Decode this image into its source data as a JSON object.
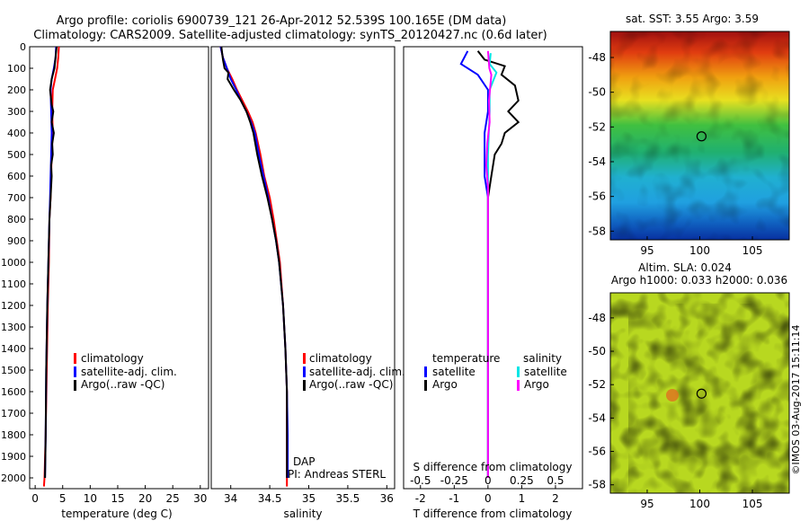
{
  "title": {
    "line1": "Argo profile: coriolis 6900739_121 26-Apr-2012 52.539S 100.165E (DM data)",
    "line2": "Climatology: CARS2009. Satellite-adjusted climatology: synTS_20120427.nc (0.6d later)"
  },
  "depth_ticks": [
    0,
    100,
    200,
    300,
    400,
    500,
    600,
    700,
    800,
    900,
    1000,
    1100,
    1200,
    1300,
    1400,
    1500,
    1600,
    1700,
    1800,
    1900,
    2000
  ],
  "colors": {
    "clim": "#ff0000",
    "sat": "#0000ff",
    "argo": "#000000",
    "sal_sat": "#00e5e5",
    "sal_argo": "#ff00ff"
  },
  "chart_data": [
    {
      "type": "line",
      "name": "temperature",
      "xlabel": "temperature (deg C)",
      "xlim": [
        -1,
        31.5
      ],
      "xticks": [
        0,
        5,
        10,
        15,
        20,
        25,
        30
      ],
      "ylim": [
        0,
        2050
      ],
      "series": [
        {
          "name": "climatology",
          "color": "#ff0000",
          "points": [
            [
              4.3,
              0
            ],
            [
              4.2,
              50
            ],
            [
              4.0,
              100
            ],
            [
              3.6,
              150
            ],
            [
              3.2,
              200
            ],
            [
              3.1,
              300
            ],
            [
              3.2,
              400
            ],
            [
              3.0,
              500
            ],
            [
              2.9,
              600
            ],
            [
              2.8,
              700
            ],
            [
              2.6,
              800
            ],
            [
              2.5,
              1000
            ],
            [
              2.3,
              1200
            ],
            [
              2.1,
              1500
            ],
            [
              1.9,
              1800
            ],
            [
              1.7,
              2000
            ],
            [
              1.6,
              2040
            ]
          ]
        },
        {
          "name": "satellite-adj. clim.",
          "color": "#0000ff",
          "points": [
            [
              3.8,
              0
            ],
            [
              3.7,
              50
            ],
            [
              3.4,
              100
            ],
            [
              3.0,
              150
            ],
            [
              2.8,
              200
            ],
            [
              2.9,
              300
            ],
            [
              3.0,
              400
            ],
            [
              2.9,
              500
            ],
            [
              2.8,
              600
            ],
            [
              2.7,
              700
            ],
            [
              2.6,
              800
            ],
            [
              2.4,
              1000
            ],
            [
              2.2,
              1200
            ],
            [
              2.0,
              1500
            ],
            [
              1.9,
              1800
            ],
            [
              1.8,
              2000
            ]
          ]
        },
        {
          "name": "Argo(..raw -QC)",
          "color": "#000000",
          "points": [
            [
              3.9,
              0
            ],
            [
              3.7,
              50
            ],
            [
              3.5,
              100
            ],
            [
              3.0,
              150
            ],
            [
              2.7,
              200
            ],
            [
              3.0,
              270
            ],
            [
              3.3,
              300
            ],
            [
              3.0,
              350
            ],
            [
              3.4,
              400
            ],
            [
              3.1,
              450
            ],
            [
              3.2,
              500
            ],
            [
              2.9,
              550
            ],
            [
              3.0,
              600
            ],
            [
              2.8,
              700
            ],
            [
              2.6,
              800
            ],
            [
              2.4,
              1000
            ],
            [
              2.2,
              1200
            ],
            [
              2.0,
              1500
            ],
            [
              1.9,
              1800
            ],
            [
              1.8,
              2000
            ]
          ]
        }
      ],
      "legend": [
        "climatology",
        "satellite-adj. clim.",
        "Argo(..raw -QC)"
      ]
    },
    {
      "type": "line",
      "name": "salinity",
      "xlabel": "salinity",
      "xlim": [
        33.75,
        36.1
      ],
      "xticks": [
        34,
        34.5,
        35,
        35.5,
        36
      ],
      "ylim": [
        0,
        2050
      ],
      "series": [
        {
          "name": "climatology",
          "color": "#ff0000",
          "points": [
            [
              33.87,
              0
            ],
            [
              33.9,
              50
            ],
            [
              33.95,
              100
            ],
            [
              34.02,
              150
            ],
            [
              34.08,
              200
            ],
            [
              34.15,
              250
            ],
            [
              34.22,
              300
            ],
            [
              34.28,
              350
            ],
            [
              34.32,
              400
            ],
            [
              34.38,
              500
            ],
            [
              34.43,
              600
            ],
            [
              34.5,
              700
            ],
            [
              34.55,
              800
            ],
            [
              34.59,
              900
            ],
            [
              34.63,
              1000
            ],
            [
              34.67,
              1200
            ],
            [
              34.7,
              1400
            ],
            [
              34.72,
              1600
            ],
            [
              34.72,
              1800
            ],
            [
              34.72,
              2000
            ],
            [
              34.72,
              2040
            ]
          ]
        },
        {
          "name": "satellite-adj. clim.",
          "color": "#0000ff",
          "points": [
            [
              33.87,
              0
            ],
            [
              33.9,
              50
            ],
            [
              33.95,
              100
            ],
            [
              34.0,
              150
            ],
            [
              34.07,
              200
            ],
            [
              34.13,
              250
            ],
            [
              34.2,
              300
            ],
            [
              34.26,
              350
            ],
            [
              34.31,
              400
            ],
            [
              34.36,
              500
            ],
            [
              34.42,
              600
            ],
            [
              34.48,
              700
            ],
            [
              34.53,
              800
            ],
            [
              34.58,
              900
            ],
            [
              34.62,
              1000
            ],
            [
              34.67,
              1200
            ],
            [
              34.7,
              1400
            ],
            [
              34.72,
              1600
            ],
            [
              34.73,
              1800
            ],
            [
              34.73,
              2000
            ]
          ]
        },
        {
          "name": "Argo(..raw -QC)",
          "color": "#000000",
          "points": [
            [
              33.88,
              0
            ],
            [
              33.9,
              60
            ],
            [
              33.92,
              100
            ],
            [
              33.97,
              120
            ],
            [
              33.96,
              150
            ],
            [
              34.04,
              200
            ],
            [
              34.13,
              250
            ],
            [
              34.2,
              300
            ],
            [
              34.25,
              350
            ],
            [
              34.29,
              400
            ],
            [
              34.34,
              500
            ],
            [
              34.4,
              600
            ],
            [
              34.47,
              700
            ],
            [
              34.53,
              800
            ],
            [
              34.58,
              900
            ],
            [
              34.62,
              1000
            ],
            [
              34.67,
              1200
            ],
            [
              34.7,
              1400
            ],
            [
              34.72,
              1600
            ],
            [
              34.72,
              1800
            ],
            [
              34.72,
              2000
            ]
          ]
        }
      ],
      "legend": [
        "climatology",
        "satellite-adj. clim.",
        "Argo(..raw -QC)"
      ],
      "annotation": [
        "DAP",
        "PI: Andreas STERL"
      ]
    },
    {
      "type": "line",
      "name": "difference",
      "xlabel": "T difference from climatology",
      "xlabel2": "S difference from climatology",
      "xlim": [
        -2.5,
        2.8
      ],
      "xticks": [
        -2,
        -1,
        0,
        1,
        2
      ],
      "xticks_s": [
        "-0.5",
        "-0.25",
        "0",
        "0.25",
        "0.5"
      ],
      "xticks_s_values": [
        -0.5,
        -0.25,
        0,
        0.25,
        0.5
      ],
      "ylim": [
        0,
        2050
      ],
      "series": [
        {
          "name": "temperature satellite",
          "color": "#0000ff",
          "points": [
            [
              -0.6,
              20
            ],
            [
              -0.8,
              80
            ],
            [
              -0.3,
              130
            ],
            [
              0.0,
              200
            ],
            [
              0.0,
              300
            ],
            [
              -0.1,
              400
            ],
            [
              -0.1,
              500
            ],
            [
              -0.1,
              600
            ],
            [
              0.0,
              700
            ],
            [
              0.0,
              800
            ],
            [
              0.0,
              1000
            ],
            [
              0.0,
              1500
            ],
            [
              0.0,
              2000
            ]
          ]
        },
        {
          "name": "temperature Argo",
          "color": "#000000",
          "points": [
            [
              -0.3,
              20
            ],
            [
              -0.1,
              60
            ],
            [
              0.5,
              90
            ],
            [
              0.4,
              130
            ],
            [
              0.8,
              180
            ],
            [
              0.9,
              250
            ],
            [
              0.6,
              300
            ],
            [
              0.9,
              350
            ],
            [
              0.5,
              400
            ],
            [
              0.4,
              450
            ],
            [
              0.2,
              500
            ],
            [
              0.1,
              600
            ],
            [
              0.0,
              700
            ],
            [
              0.0,
              1000
            ],
            [
              0.0,
              1500
            ],
            [
              0.0,
              2000
            ]
          ]
        },
        {
          "name": "salinity satellite",
          "color": "#00e5e5",
          "points": [
            [
              0.08,
              30
            ],
            [
              0.05,
              80
            ],
            [
              0.25,
              120
            ],
            [
              0.05,
              200
            ],
            [
              0.05,
              300
            ],
            [
              0.0,
              500
            ],
            [
              0.0,
              700
            ],
            [
              0.0,
              1000
            ],
            [
              0.0,
              2000
            ]
          ]
        },
        {
          "name": "salinity Argo",
          "color": "#ff00ff",
          "points": [
            [
              0.0,
              20
            ],
            [
              0.04,
              100
            ],
            [
              0.1,
              130
            ],
            [
              0.03,
              250
            ],
            [
              0.05,
              350
            ],
            [
              -0.02,
              450
            ],
            [
              -0.05,
              550
            ],
            [
              0.0,
              650
            ],
            [
              0.0,
              1000
            ],
            [
              0.0,
              2000
            ]
          ]
        }
      ],
      "legend_headers": [
        "temperature",
        "salinity"
      ],
      "legend_items": [
        "satellite",
        "Argo",
        "satellite",
        "Argo"
      ]
    }
  ],
  "maps": {
    "sst": {
      "title": "sat. SST: 3.55 Argo: 3.59",
      "yticks": [
        "-48",
        "-50",
        "-52",
        "-54",
        "-56",
        "-58"
      ],
      "ytick_values": [
        -48,
        -50,
        -52,
        -54,
        -56,
        -58
      ],
      "xticks": [
        "95",
        "100",
        "105"
      ],
      "xtick_values": [
        95,
        100,
        105
      ],
      "lon_range": [
        91.5,
        108.5
      ],
      "lat_range": [
        -46.5,
        -58.5
      ],
      "marker": [
        100.165,
        -52.539
      ]
    },
    "sla": {
      "title1": "Altim. SLA: 0.024",
      "title2": "Argo h1000: 0.033 h2000: 0.036",
      "yticks": [
        "-48",
        "-50",
        "-52",
        "-54",
        "-56",
        "-58"
      ],
      "ytick_values": [
        -48,
        -50,
        -52,
        -54,
        -56,
        -58
      ],
      "xticks": [
        "95",
        "100",
        "105"
      ],
      "xtick_values": [
        95,
        100,
        105
      ],
      "lon_range": [
        91.5,
        108.5
      ],
      "lat_range": [
        -46.5,
        -58.5
      ],
      "marker": [
        100.165,
        -52.539
      ],
      "credit": "©IMOS 03-Aug-2017 15:11:14"
    }
  }
}
